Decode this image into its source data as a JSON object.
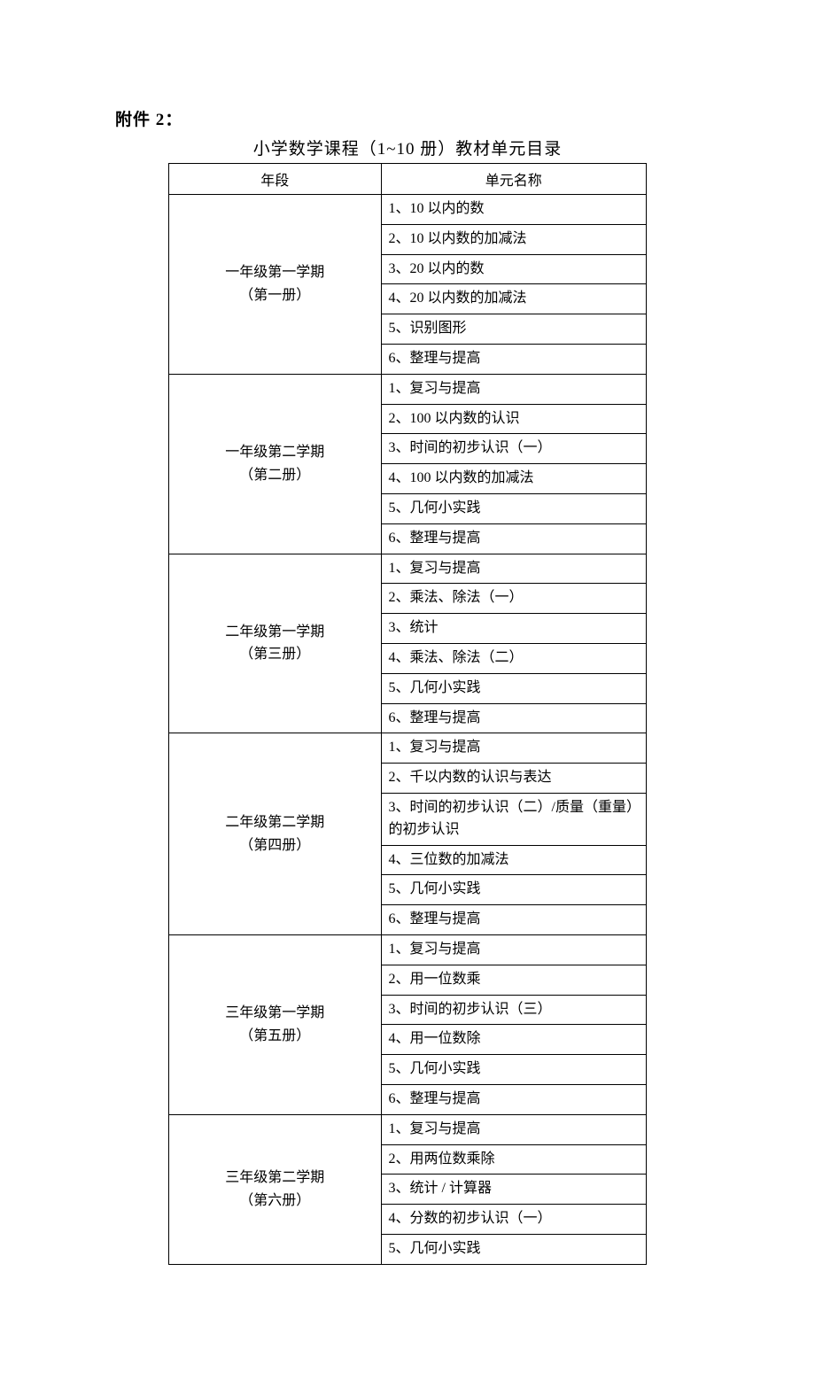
{
  "heading": "附件 2：",
  "title": "小学数学课程（1~10 册）教材单元目录",
  "columns": {
    "grade": "年段",
    "unit": "单元名称"
  },
  "sections": [
    {
      "grade_main": "一年级第一学期",
      "grade_sub": "（第一册）",
      "units": [
        "1、10 以内的数",
        "2、10 以内数的加减法",
        "3、20 以内的数",
        "4、20 以内数的加减法",
        "5、识别图形",
        "6、整理与提高"
      ]
    },
    {
      "grade_main": "一年级第二学期",
      "grade_sub": "（第二册）",
      "units": [
        "1、复习与提高",
        "2、100 以内数的认识",
        "3、时间的初步认识（一）",
        "4、100 以内数的加减法",
        "5、几何小实践",
        "6、整理与提高"
      ]
    },
    {
      "grade_main": "二年级第一学期",
      "grade_sub": "（第三册）",
      "units": [
        "1、复习与提高",
        "2、乘法、除法（一）",
        "3、统计",
        "4、乘法、除法（二）",
        "5、几何小实践",
        "6、整理与提高"
      ]
    },
    {
      "grade_main": "二年级第二学期",
      "grade_sub": "（第四册）",
      "units": [
        "1、复习与提高",
        "2、千以内数的认识与表达",
        "3、时间的初步认识（二）/质量（重量）的初步认识",
        "4、三位数的加减法",
        "5、几何小实践",
        "6、整理与提高"
      ]
    },
    {
      "grade_main": "三年级第一学期",
      "grade_sub": "（第五册）",
      "units": [
        "1、复习与提高",
        "2、用一位数乘",
        "3、时间的初步认识（三）",
        "4、用一位数除",
        "5、几何小实践",
        "6、整理与提高"
      ]
    },
    {
      "grade_main": "三年级第二学期",
      "grade_sub": "（第六册）",
      "units": [
        "1、复习与提高",
        "2、用两位数乘除",
        "3、统计 / 计算器",
        "4、分数的初步认识（一）",
        "5、几何小实践"
      ]
    }
  ]
}
